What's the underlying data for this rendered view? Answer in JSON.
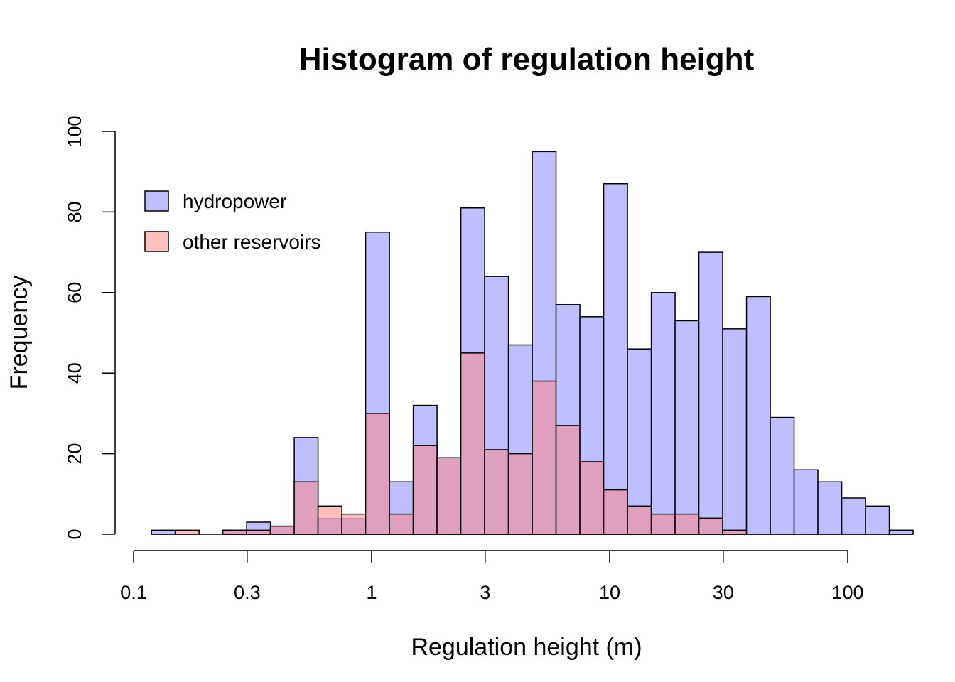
{
  "chart_data": {
    "type": "bar",
    "title": "Histogram of regulation height",
    "xlabel": "Regulation height (m)",
    "ylabel": "Frequency",
    "x_scale": "log",
    "xlim": [
      0.1,
      100
    ],
    "ylim": [
      0,
      100
    ],
    "grid": false,
    "legend_position": "top-left",
    "x_ticks": [
      0.1,
      0.3,
      1,
      3,
      10,
      30,
      100
    ],
    "x_tick_labels": [
      "0.1",
      "0.3",
      "1",
      "3",
      "10",
      "30",
      "100"
    ],
    "y_ticks": [
      0,
      20,
      40,
      60,
      80,
      100
    ],
    "y_tick_labels": [
      "0",
      "20",
      "40",
      "60",
      "80",
      "100"
    ],
    "bin_edges": [
      0.1188,
      0.1496,
      0.1884,
      0.2371,
      0.2985,
      0.3758,
      0.4731,
      0.5956,
      0.7498,
      0.9439,
      1.1883,
      1.4959,
      1.8832,
      2.3708,
      2.9846,
      3.7573,
      4.7301,
      5.9547,
      7.4964,
      9.4372,
      11.881,
      14.957,
      18.829,
      23.704,
      29.841,
      37.568,
      47.295,
      59.54,
      74.955,
      94.361,
      118.79,
      149.55,
      188.27
    ],
    "series": [
      {
        "name": "hydropower",
        "color": "#bfbfff",
        "values": [
          1,
          0,
          0,
          1,
          3,
          2,
          24,
          4,
          4,
          75,
          13,
          32,
          19,
          81,
          64,
          47,
          95,
          57,
          54,
          87,
          46,
          60,
          53,
          70,
          51,
          59,
          29,
          16,
          13,
          9,
          7,
          1
        ]
      },
      {
        "name": "other reservoirs",
        "color": "#ffbfbf",
        "values": [
          0,
          1,
          0,
          1,
          1,
          2,
          13,
          7,
          5,
          30,
          5,
          22,
          19,
          45,
          21,
          20,
          38,
          27,
          18,
          11,
          7,
          5,
          5,
          4,
          1,
          0,
          0,
          0,
          0,
          0,
          0,
          0
        ]
      }
    ],
    "overlap_color": "#dfa0bf"
  }
}
